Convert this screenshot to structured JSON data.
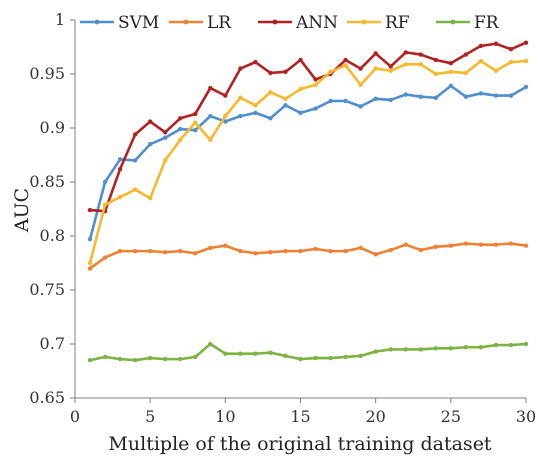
{
  "chart_data": {
    "type": "line",
    "title": "",
    "xlabel": "Multiple of the original training dataset",
    "ylabel": "AUC",
    "xlim": [
      0,
      30
    ],
    "ylim": [
      0.65,
      1.0
    ],
    "x_ticks": [
      0,
      5,
      10,
      15,
      20,
      25,
      30
    ],
    "y_ticks": [
      0.65,
      0.7,
      0.75,
      0.8,
      0.85,
      0.9,
      0.95,
      1
    ],
    "y_tick_labels": [
      "0.65",
      "0.7",
      "0.75",
      "0.8",
      "0.85",
      "0.9",
      "0.95",
      "1"
    ],
    "grid": false,
    "legend_position": "top",
    "x": [
      1,
      2,
      3,
      4,
      5,
      6,
      7,
      8,
      9,
      10,
      11,
      12,
      13,
      14,
      15,
      16,
      17,
      18,
      19,
      20,
      21,
      22,
      23,
      24,
      25,
      26,
      27,
      28,
      29,
      30
    ],
    "series": [
      {
        "name": "SVM",
        "color": "#4f8fcf",
        "values": [
          0.797,
          0.85,
          0.871,
          0.87,
          0.885,
          0.891,
          0.899,
          0.898,
          0.911,
          0.906,
          0.911,
          0.914,
          0.909,
          0.921,
          0.914,
          0.918,
          0.925,
          0.925,
          0.92,
          0.927,
          0.926,
          0.931,
          0.929,
          0.928,
          0.939,
          0.929,
          0.932,
          0.93,
          0.93,
          0.938
        ]
      },
      {
        "name": "LR",
        "color": "#ef8135",
        "values": [
          0.77,
          0.78,
          0.786,
          0.786,
          0.786,
          0.785,
          0.786,
          0.784,
          0.789,
          0.791,
          0.786,
          0.784,
          0.785,
          0.786,
          0.786,
          0.788,
          0.786,
          0.786,
          0.789,
          0.783,
          0.787,
          0.792,
          0.787,
          0.79,
          0.791,
          0.793,
          0.792,
          0.792,
          0.793,
          0.791
        ]
      },
      {
        "name": "ANN",
        "color": "#b22222",
        "values": [
          0.824,
          0.823,
          0.862,
          0.894,
          0.906,
          0.896,
          0.909,
          0.913,
          0.937,
          0.93,
          0.955,
          0.961,
          0.951,
          0.952,
          0.963,
          0.945,
          0.95,
          0.963,
          0.955,
          0.969,
          0.957,
          0.97,
          0.968,
          0.963,
          0.96,
          0.968,
          0.976,
          0.978,
          0.973,
          0.979
        ]
      },
      {
        "name": "RF",
        "color": "#f5b82e",
        "values": [
          0.775,
          0.829,
          0.836,
          0.843,
          0.835,
          0.87,
          0.889,
          0.905,
          0.889,
          0.911,
          0.928,
          0.921,
          0.933,
          0.927,
          0.936,
          0.94,
          0.952,
          0.958,
          0.94,
          0.955,
          0.953,
          0.959,
          0.959,
          0.95,
          0.952,
          0.951,
          0.962,
          0.953,
          0.961,
          0.962
        ]
      },
      {
        "name": "FR",
        "color": "#7cb342",
        "values": [
          0.685,
          0.688,
          0.686,
          0.685,
          0.687,
          0.686,
          0.686,
          0.688,
          0.7,
          0.691,
          0.691,
          0.691,
          0.692,
          0.689,
          0.686,
          0.687,
          0.687,
          0.688,
          0.689,
          0.693,
          0.695,
          0.695,
          0.695,
          0.696,
          0.696,
          0.697,
          0.697,
          0.699,
          0.699,
          0.7
        ]
      }
    ]
  }
}
